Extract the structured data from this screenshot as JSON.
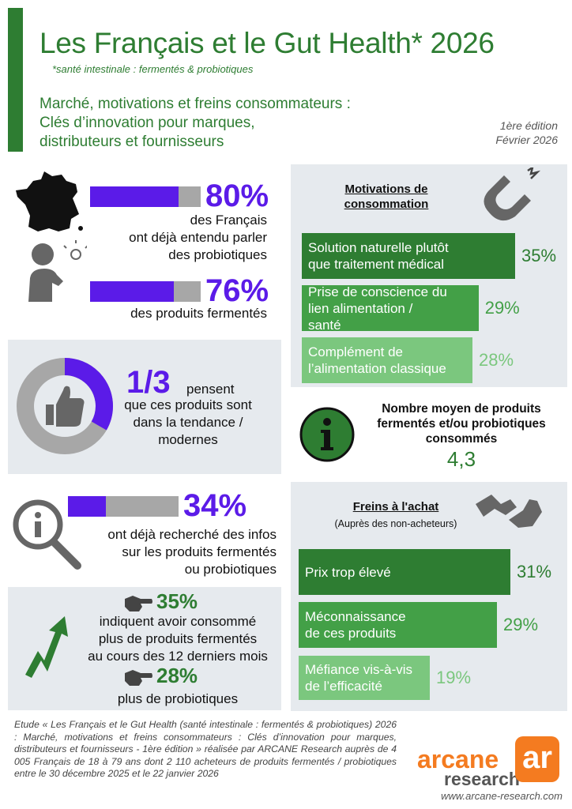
{
  "header": {
    "title": "Les Français et le Gut Health* 2026",
    "note": "*santé intestinale : fermentés & probiotiques",
    "subhead": "Marché, motivations et freins consommateurs :\nClés d’innovation pour marques,\ndistributeurs et fournisseurs",
    "edition_line1": "1ère édition",
    "edition_line2": "Février 2026"
  },
  "awareness": {
    "probiotics": {
      "value": "80%",
      "fraction": 0.8,
      "text1": "des Français",
      "text2": "ont déjà entendu parler",
      "text3": "des probiotiques"
    },
    "fermented": {
      "value": "76%",
      "fraction": 0.76,
      "text1": "des produits fermentés"
    }
  },
  "trend": {
    "value": "1/3",
    "fraction": 0.333,
    "word": "pensent",
    "text": "que ces produits sont\ndans la tendance /\nmodernes"
  },
  "search": {
    "value": "34%",
    "fraction": 0.34,
    "text": "ont déjà recherché des infos\nsur les produits fermentés\nou probiotiques"
  },
  "consumption": {
    "fermented_value": "35%",
    "fermented_text": "indiquent avoir consommé\nplus de produits fermentés\nau cours des 12 derniers mois",
    "probiotics_value": "28%",
    "probiotics_text": "plus de probiotiques"
  },
  "motivations": {
    "title": "Motivations de\nconsommation",
    "items": [
      {
        "label": "Solution naturelle plutôt\nque traitement médical",
        "value": "35%",
        "color": "#2e7d32"
      },
      {
        "label": "Prise de conscience du\nlien alimentation /\nsanté",
        "value": "29%",
        "color": "#43a047"
      },
      {
        "label": "Complément de\nl’alimentation classique",
        "value": "28%",
        "color": "#7bc77e"
      }
    ]
  },
  "average": {
    "text": "Nombre moyen de produits\nfermentés et/ou probiotiques\nconsommés",
    "value": "4,3"
  },
  "barriers": {
    "title": "Freins à l'achat",
    "subtitle": "(Auprès des non-acheteurs)",
    "items": [
      {
        "label": "Prix trop élevé",
        "value": "31%",
        "color": "#2e7d32"
      },
      {
        "label": "Méconnaissance\nde ces produits",
        "value": "29%",
        "color": "#43a047"
      },
      {
        "label": "Méfiance vis-à-vis\nde l’efficacité",
        "value": "19%",
        "color": "#7bc77e"
      }
    ]
  },
  "footer": {
    "study": "Etude « Les Français et le Gut Health (santé intestinale : fermentés & probiotiques) 2026 : Marché, motivations et freins consommateurs : Clés d’innovation pour marques, distributeurs et fournisseurs  - 1ère édition » réalisée par ARCANE Research auprès de 4 005 Français de 18 à 79 ans dont 2 110 acheteurs de produits fermentés / probiotiques entre le 30 décembre 2025 et le 22 janvier 2026",
    "logo_line1": "arcane",
    "logo_line2": "research",
    "logo_mark": "ar",
    "url": "www.arcane-research.com"
  }
}
